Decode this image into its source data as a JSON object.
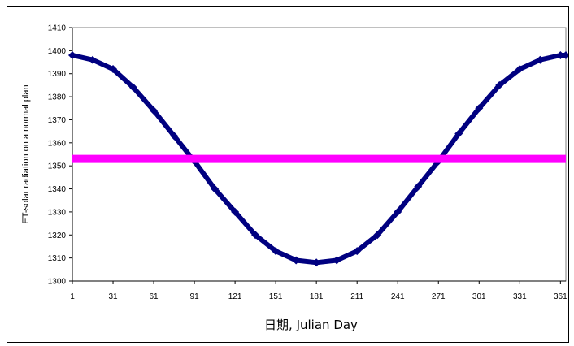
{
  "chart_data": {
    "type": "line",
    "title": "",
    "xlabel": "日期, Julian Day",
    "ylabel": "ET-solar radiation on a normal plan",
    "xlim": [
      1,
      365
    ],
    "ylim": [
      1300,
      1410
    ],
    "x_ticks": [
      1,
      31,
      61,
      91,
      121,
      151,
      181,
      211,
      241,
      271,
      301,
      331,
      361
    ],
    "y_ticks": [
      1300,
      1310,
      1320,
      1330,
      1340,
      1350,
      1360,
      1370,
      1380,
      1390,
      1400,
      1410
    ],
    "grid": false,
    "legend": "none",
    "series": [
      {
        "color": "#000080",
        "marker": "diamond",
        "x": [
          1,
          16,
          31,
          46,
          61,
          76,
          91,
          106,
          121,
          136,
          151,
          166,
          181,
          196,
          211,
          226,
          241,
          256,
          271,
          286,
          301,
          316,
          331,
          346,
          361,
          365
        ],
        "values": [
          1398,
          1396,
          1392,
          1384,
          1374,
          1363,
          1352,
          1340,
          1330,
          1320,
          1313,
          1309,
          1308,
          1309,
          1313,
          1320,
          1330,
          1341,
          1352,
          1364,
          1375,
          1385,
          1392,
          1396,
          1398,
          1398
        ]
      },
      {
        "color": "#ff00ff",
        "marker": "none",
        "x": [
          1,
          365
        ],
        "values": [
          1353,
          1353
        ]
      }
    ]
  }
}
